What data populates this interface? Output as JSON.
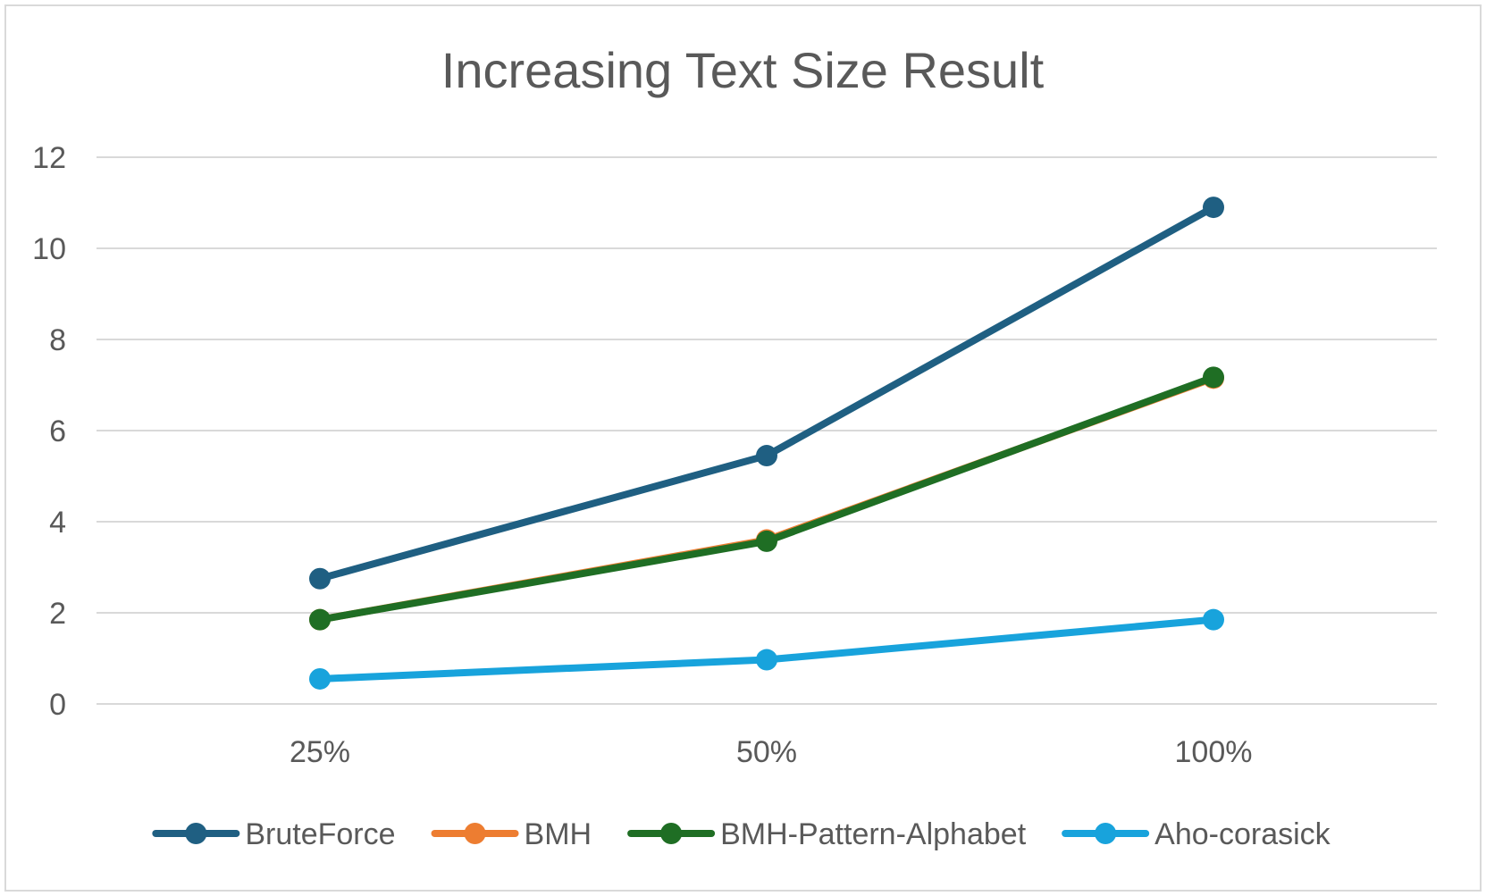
{
  "chart_data": {
    "type": "line",
    "title": "Increasing Text Size Result",
    "xlabel": "",
    "ylabel": "",
    "categories": [
      "25%",
      "50%",
      "100%"
    ],
    "ylim": [
      0,
      12
    ],
    "yticks": [
      0,
      2,
      4,
      6,
      8,
      10,
      12
    ],
    "grid": true,
    "legend": "bottom",
    "series": [
      {
        "name": "BruteForce",
        "color": "#1f5f82",
        "values": [
          2.75,
          5.45,
          10.9
        ]
      },
      {
        "name": "BMH",
        "color": "#ed7d31",
        "values": [
          1.85,
          3.6,
          7.15
        ]
      },
      {
        "name": "BMH-Pattern-Alphabet",
        "color": "#1f6e24",
        "values": [
          1.85,
          3.57,
          7.17
        ]
      },
      {
        "name": "Aho-corasick",
        "color": "#18a3dc",
        "values": [
          0.55,
          0.97,
          1.85
        ]
      }
    ]
  }
}
